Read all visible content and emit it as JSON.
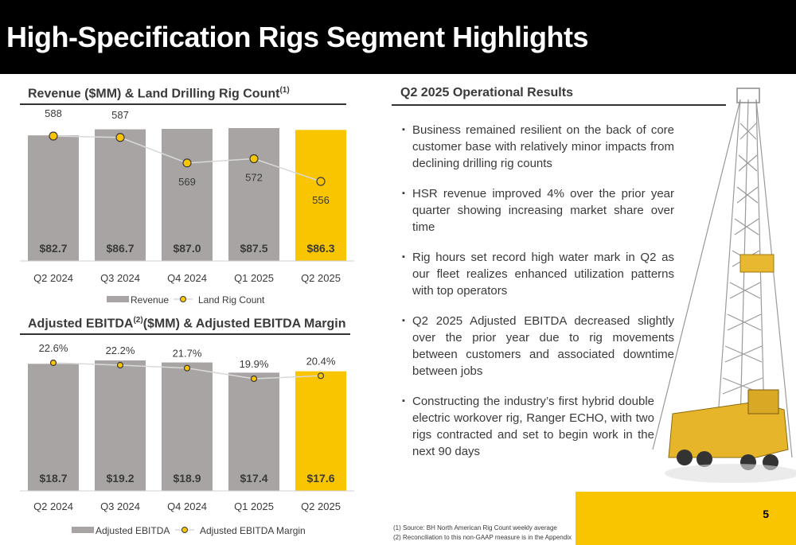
{
  "title": "High-Specification Rigs Segment Highlights",
  "page_number": "5",
  "colors": {
    "accent": "#F9C500",
    "bar_gray": "#A8A4A4",
    "line_gray": "#D9D9D9",
    "title_bg": "#000000"
  },
  "revenue_section": {
    "title": "Revenue ($MM) & Land Drilling Rig Count",
    "footnote_mark": "(1)"
  },
  "ebitda_section": {
    "title_pre": "Adjusted EBITDA",
    "footnote_mark": "(2)",
    "title_post": "($MM) & Adjusted EBITDA Margin"
  },
  "results_section": {
    "title": "Q2 2025 Operational Results"
  },
  "bullets": [
    "Business remained resilient on the back of core customer base with relatively minor impacts from declining drilling rig counts",
    "HSR revenue improved 4% over the prior year quarter showing increasing market share over time",
    "Rig hours set record high water mark in Q2 as our fleet realizes enhanced utilization patterns with top operators",
    "Q2 2025 Adjusted EBITDA decreased slightly over the prior year due to rig movements between customers and associated downtime between jobs",
    "Constructing the industry’s first hybrid double electric workover rig, Ranger ECHO, with two rigs contracted and set to begin work in the next 90 days"
  ],
  "footnotes": [
    "(1)  Source: BH North American Rig Count weekly average",
    "(2)  Reconciliation to this non-GAAP measure is in the Appendix"
  ],
  "chart_data": [
    {
      "type": "bar",
      "title": "Revenue ($MM) & Land Drilling Rig Count",
      "categories": [
        "Q2 2024",
        "Q3 2024",
        "Q4 2024",
        "Q1 2025",
        "Q2 2025"
      ],
      "series": [
        {
          "name": "Revenue",
          "kind": "bar",
          "values": [
            82.7,
            86.7,
            87.0,
            87.5,
            86.3
          ],
          "labels": [
            "$82.7",
            "$86.7",
            "$87.0",
            "$87.5",
            "$86.3"
          ]
        },
        {
          "name": "Land Rig Count",
          "kind": "line",
          "values": [
            588,
            587,
            569,
            572,
            556
          ],
          "labels": [
            "588",
            "587",
            "569",
            "572",
            "556"
          ]
        }
      ],
      "highlight_index": 4,
      "legend_position": "bottom"
    },
    {
      "type": "bar",
      "title": "Adjusted EBITDA(2)($MM) & Adjusted EBITDA Margin",
      "categories": [
        "Q2 2024",
        "Q3 2024",
        "Q4 2024",
        "Q1 2025",
        "Q2 2025"
      ],
      "series": [
        {
          "name": "Adjusted EBITDA",
          "kind": "bar",
          "values": [
            18.7,
            19.2,
            18.9,
            17.4,
            17.6
          ],
          "labels": [
            "$18.7",
            "$19.2",
            "$18.9",
            "$17.4",
            "$17.6"
          ]
        },
        {
          "name": "Adjusted EBITDA Margin",
          "kind": "line",
          "values": [
            22.6,
            22.2,
            21.7,
            19.9,
            20.4
          ],
          "labels": [
            "22.6%",
            "22.2%",
            "21.7%",
            "19.9%",
            "20.4%"
          ]
        }
      ],
      "highlight_index": 4,
      "legend_position": "bottom"
    }
  ]
}
